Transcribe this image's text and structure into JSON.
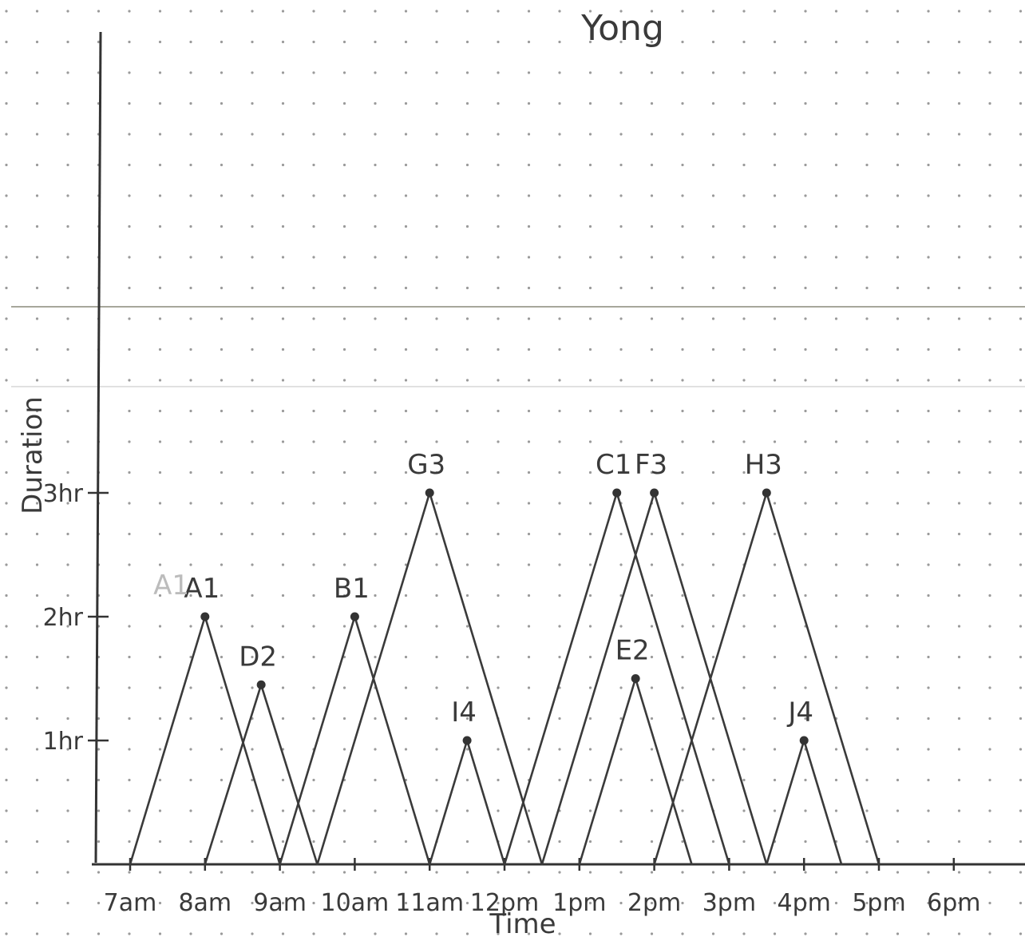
{
  "chart_data": {
    "type": "line",
    "title": "Yong",
    "xlabel": "Time",
    "ylabel": "Duration",
    "categories": [
      "7am",
      "8am",
      "9am",
      "10am",
      "11am",
      "12pm",
      "1pm",
      "2pm",
      "3pm",
      "4pm",
      "5pm",
      "6pm"
    ],
    "y_ticks": [
      {
        "value": 1,
        "label": "1hr"
      },
      {
        "value": 2,
        "label": "2hr"
      },
      {
        "value": 3,
        "label": "3hr"
      }
    ],
    "xlim": [
      6.6,
      18.8
    ],
    "ylim": [
      0,
      5.2
    ],
    "grid": "dotted",
    "series": [
      {
        "name": "A1",
        "points": [
          [
            7.0,
            0
          ],
          [
            8.0,
            2.0
          ],
          [
            9.0,
            0
          ]
        ]
      },
      {
        "name": "D2",
        "points": [
          [
            8.0,
            0
          ],
          [
            8.75,
            1.45
          ],
          [
            9.5,
            0
          ]
        ]
      },
      {
        "name": "B1",
        "points": [
          [
            9.0,
            0
          ],
          [
            10.0,
            2.0
          ],
          [
            11.0,
            0
          ]
        ]
      },
      {
        "name": "G3",
        "points": [
          [
            9.5,
            0
          ],
          [
            11.0,
            3.0
          ],
          [
            12.5,
            0
          ]
        ]
      },
      {
        "name": "I4",
        "points": [
          [
            11.0,
            0
          ],
          [
            11.5,
            1.0
          ],
          [
            12.0,
            0
          ]
        ]
      },
      {
        "name": "C1",
        "points": [
          [
            12.0,
            0
          ],
          [
            13.5,
            3.0
          ],
          [
            15.0,
            0
          ]
        ]
      },
      {
        "name": "E2",
        "points": [
          [
            13.0,
            0
          ],
          [
            13.75,
            1.5
          ],
          [
            14.5,
            0
          ]
        ]
      },
      {
        "name": "F3",
        "points": [
          [
            12.5,
            0
          ],
          [
            14.0,
            3.0
          ],
          [
            15.5,
            0
          ]
        ]
      },
      {
        "name": "H3",
        "points": [
          [
            14.0,
            0
          ],
          [
            15.5,
            3.0
          ],
          [
            17.0,
            0
          ]
        ]
      },
      {
        "name": "J4",
        "points": [
          [
            15.5,
            0
          ],
          [
            16.0,
            1.0
          ],
          [
            16.5,
            0
          ]
        ]
      }
    ],
    "annotations": [
      {
        "text": "A1",
        "x": 7.55,
        "y": 2.18
      }
    ]
  }
}
